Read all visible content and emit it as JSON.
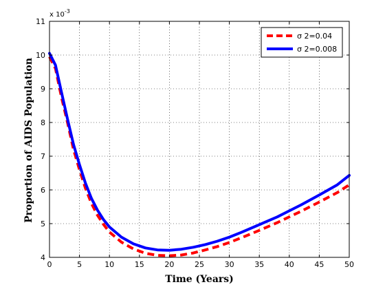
{
  "chart_data": {
    "type": "line",
    "xlabel": "Time (Years)",
    "ylabel": "Proportion of AIDS Population",
    "y_multiplier": "x 10",
    "y_exponent": "-3",
    "xlim": [
      0,
      50
    ],
    "ylim": [
      4,
      11
    ],
    "xticks": [
      0,
      5,
      10,
      15,
      20,
      25,
      30,
      35,
      40,
      45,
      50
    ],
    "yticks": [
      4,
      5,
      6,
      7,
      8,
      9,
      10,
      11
    ],
    "grid": true,
    "legend_position": "top-right",
    "series": [
      {
        "name": "σ 2=0.04",
        "color": "#ff0000",
        "style": "dashed",
        "x": [
          0,
          1,
          2,
          3,
          4,
          5,
          6,
          7,
          8,
          9,
          10,
          12,
          14,
          16,
          18,
          20,
          22,
          24,
          26,
          28,
          30,
          32,
          35,
          38,
          40,
          42,
          45,
          48,
          50
        ],
        "y": [
          9.95,
          9.6,
          8.75,
          8.0,
          7.2,
          6.6,
          6.05,
          5.6,
          5.25,
          4.98,
          4.75,
          4.45,
          4.25,
          4.12,
          4.06,
          4.05,
          4.07,
          4.13,
          4.22,
          4.32,
          4.44,
          4.58,
          4.8,
          5.03,
          5.2,
          5.37,
          5.64,
          5.92,
          6.15
        ]
      },
      {
        "name": "σ 2=0.008",
        "color": "#0000ff",
        "style": "solid",
        "x": [
          0,
          1,
          2,
          3,
          4,
          5,
          6,
          7,
          8,
          9,
          10,
          12,
          14,
          16,
          18,
          20,
          22,
          24,
          26,
          28,
          30,
          32,
          35,
          38,
          40,
          42,
          45,
          48,
          50
        ],
        "y": [
          10.05,
          9.7,
          8.9,
          8.1,
          7.35,
          6.75,
          6.2,
          5.75,
          5.4,
          5.12,
          4.9,
          4.6,
          4.4,
          4.28,
          4.22,
          4.21,
          4.24,
          4.3,
          4.38,
          4.48,
          4.6,
          4.74,
          4.97,
          5.2,
          5.38,
          5.56,
          5.85,
          6.15,
          6.43
        ]
      }
    ]
  }
}
